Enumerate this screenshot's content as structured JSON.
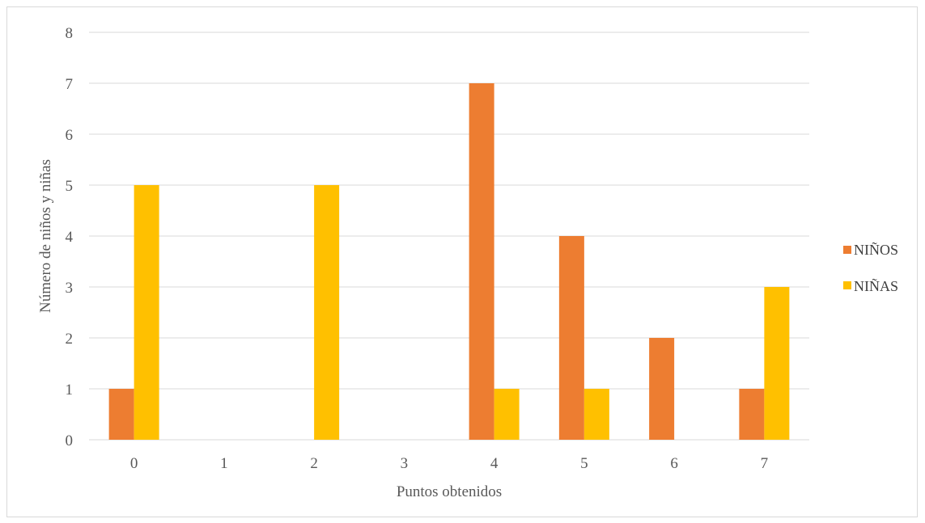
{
  "chart_data": {
    "type": "bar",
    "title": "",
    "xlabel": "Puntos obtenidos",
    "ylabel": "Número de niños y niñas",
    "categories": [
      "0",
      "1",
      "2",
      "3",
      "4",
      "5",
      "6",
      "7"
    ],
    "ylim": [
      0,
      8
    ],
    "yticks": [
      "0",
      "1",
      "2",
      "3",
      "4",
      "5",
      "6",
      "7",
      "8"
    ],
    "grid": true,
    "legend_position": "right",
    "series": [
      {
        "name": "NIÑOS",
        "color": "#ED7D31",
        "values": [
          1,
          0,
          0,
          0,
          7,
          4,
          2,
          1
        ]
      },
      {
        "name": "NIÑAS",
        "color": "#FFC000",
        "values": [
          5,
          0,
          5,
          0,
          1,
          1,
          0,
          3
        ]
      }
    ]
  }
}
